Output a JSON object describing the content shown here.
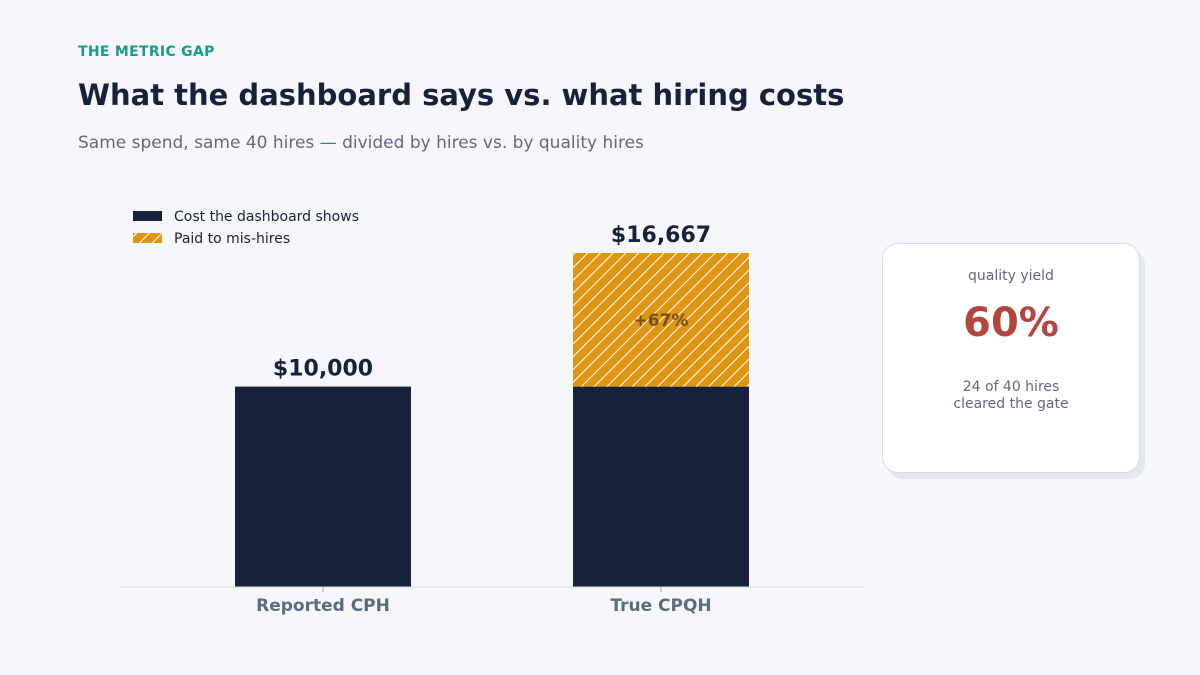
{
  "header": {
    "kicker": "THE METRIC GAP",
    "title": "What the dashboard says vs. what hiring costs",
    "subtitle": "Same spend, same 40 hires — divided by hires vs. by quality hires"
  },
  "card": {
    "label": "quality yield",
    "value": "60%",
    "note_line1": "24 of 40 hires",
    "note_line2": "cleared the gate"
  },
  "chart_data": {
    "type": "bar",
    "stacked": true,
    "categories": [
      "Reported CPH",
      "True CPQH"
    ],
    "series": [
      {
        "name": "Cost the dashboard shows",
        "values": [
          10000,
          10000
        ],
        "color": "#17223a"
      },
      {
        "name": "Paid to mis-hires",
        "values": [
          0,
          6667
        ],
        "color": "#e09612",
        "pattern": "hatch"
      }
    ],
    "totals": [
      10000,
      16667
    ],
    "total_labels": [
      "$10,000",
      "$16,667"
    ],
    "segment_annotation": "+67%",
    "ylim": [
      0,
      16667
    ],
    "grid": false,
    "legend": "top-left",
    "xlabel": "",
    "ylabel": ""
  }
}
